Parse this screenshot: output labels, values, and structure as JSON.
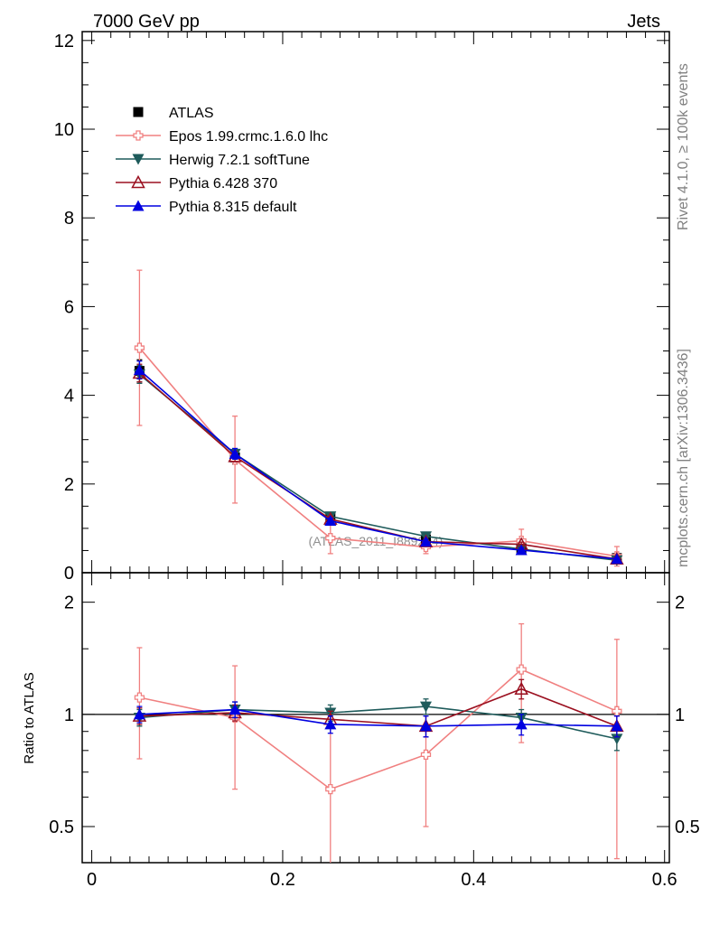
{
  "header": {
    "left": "7000 GeV pp",
    "right": "Jets"
  },
  "side_text": {
    "top": "Rivet 4.1.0, ≥ 100k events",
    "bottom": "mcplots.cern.ch [arXiv:1306.3436]"
  },
  "watermark": "(ATLAS_2011_I889204)",
  "colors": {
    "ATLAS": "#000000",
    "Epos": "#f08080",
    "Herwig": "#1e5b5b",
    "Pythia6": "#9b1020",
    "Pythia8": "#0000e0"
  },
  "chart_data": [
    {
      "type": "line",
      "title": "7000 GeV pp",
      "xlim": [
        -0.01,
        0.605
      ],
      "ylim": [
        0,
        12.2
      ],
      "yticks": [
        0,
        2,
        4,
        6,
        8,
        10,
        12
      ],
      "ytick_labels": [
        "0",
        "2",
        "4",
        "6",
        "8",
        "10",
        "12"
      ],
      "x": [
        0.05,
        0.15,
        0.25,
        0.35,
        0.45,
        0.55
      ],
      "legend": {
        "position": "top-left"
      },
      "series": [
        {
          "name": "ATLAS",
          "key": "ATLAS",
          "marker": "square",
          "line": false,
          "values": [
            4.55,
            2.6,
            1.25,
            0.75,
            0.55,
            0.33
          ],
          "errors": [
            0.25,
            0.15,
            0.08,
            0.05,
            0.05,
            0.04
          ]
        },
        {
          "name": "Epos 1.99.crmc.1.6.0 lhc",
          "key": "Epos",
          "marker": "cross",
          "values": [
            5.07,
            2.55,
            0.78,
            0.58,
            0.72,
            0.37
          ],
          "errors": [
            1.75,
            0.98,
            0.35,
            0.15,
            0.26,
            0.22
          ]
        },
        {
          "name": "Herwig 7.2.1 softTune",
          "key": "Herwig",
          "marker": "tri-down",
          "values": [
            4.47,
            2.68,
            1.27,
            0.82,
            0.53,
            0.28
          ],
          "errors": [
            0.2,
            0.12,
            0.06,
            0.05,
            0.05,
            0.03
          ]
        },
        {
          "name": "Pythia 6.428 370",
          "key": "Pythia6",
          "marker": "tri-up-open",
          "values": [
            4.5,
            2.62,
            1.21,
            0.7,
            0.64,
            0.31
          ],
          "errors": [
            0.2,
            0.12,
            0.06,
            0.05,
            0.05,
            0.03
          ]
        },
        {
          "name": "Pythia 8.315 default",
          "key": "Pythia8",
          "marker": "tri-up",
          "values": [
            4.57,
            2.68,
            1.17,
            0.7,
            0.51,
            0.31
          ],
          "errors": [
            0.2,
            0.12,
            0.06,
            0.05,
            0.05,
            0.03
          ]
        }
      ]
    },
    {
      "type": "line",
      "ylabel": "Ratio to ATLAS",
      "yscale": "log",
      "xlim": [
        -0.01,
        0.605
      ],
      "ylim": [
        0.4,
        2.4
      ],
      "yticks": [
        0.5,
        1,
        2
      ],
      "ytick_labels": [
        "0.5",
        "1",
        "2"
      ],
      "xticks": [
        0,
        0.2,
        0.4,
        0.6
      ],
      "xtick_labels": [
        "0",
        "0.2",
        "0.4",
        "0.6"
      ],
      "reference": 1,
      "x": [
        0.05,
        0.15,
        0.25,
        0.35,
        0.45,
        0.55
      ],
      "series": [
        {
          "name": "Epos 1.99.crmc.1.6.0 lhc",
          "key": "Epos",
          "marker": "cross",
          "values": [
            1.11,
            0.98,
            0.63,
            0.78,
            1.32,
            1.02
          ],
          "err_low": [
            0.35,
            0.35,
            0.26,
            0.28,
            0.48,
            0.61
          ],
          "err_high": [
            0.4,
            0.37,
            0.31,
            0.22,
            0.43,
            0.57
          ]
        },
        {
          "name": "Herwig 7.2.1 softTune",
          "key": "Herwig",
          "marker": "tri-down",
          "values": [
            0.98,
            1.03,
            1.01,
            1.05,
            0.98,
            0.86
          ],
          "errors": [
            0.05,
            0.05,
            0.05,
            0.05,
            0.05,
            0.06
          ]
        },
        {
          "name": "Pythia 6.428 370",
          "key": "Pythia6",
          "marker": "tri-up-open",
          "values": [
            0.99,
            1.01,
            0.97,
            0.93,
            1.17,
            0.93
          ],
          "errors": [
            0.05,
            0.05,
            0.05,
            0.06,
            0.07,
            0.06
          ]
        },
        {
          "name": "Pythia 8.315 default",
          "key": "Pythia8",
          "marker": "tri-up",
          "values": [
            1.0,
            1.03,
            0.94,
            0.93,
            0.94,
            0.93
          ],
          "errors": [
            0.05,
            0.05,
            0.05,
            0.06,
            0.06,
            0.06
          ]
        }
      ]
    }
  ]
}
